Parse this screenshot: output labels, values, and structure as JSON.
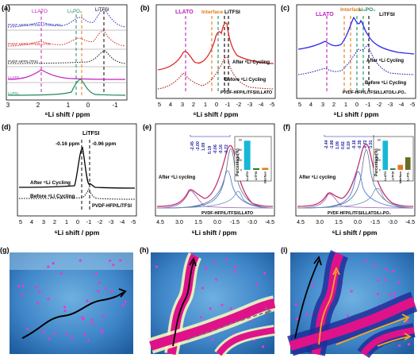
{
  "figure": {
    "panels": [
      {
        "id": "a",
        "letter": "(a)",
        "xlabel": "⁶Li shift / ppm",
        "xticks": [
          "3",
          "2",
          "1",
          "0",
          "-1"
        ],
        "peak_labels": [
          "LLATO",
          "Li₃PO₄",
          "LiTFSI"
        ],
        "traces": [
          {
            "label": "PVDF-HFP/LiTFSI/LLATO/Li₃PO₄",
            "color": "#2a2ab0",
            "style": "dotted"
          },
          {
            "label": "PVDF-HFP/LiTFSI/LLATO",
            "color": "#d42020",
            "style": "dotted"
          },
          {
            "label": "PVDF-HFP/LiTFSI",
            "color": "#111111",
            "style": "dotted"
          },
          {
            "label": "LLATO",
            "color": "#c020c0",
            "style": "solid"
          },
          {
            "label": "Li₃PO₄",
            "color": "#1f8a5a",
            "style": "solid"
          }
        ]
      },
      {
        "id": "b",
        "letter": "(b)",
        "xlabel": "⁶Li shift / ppm",
        "xticks": [
          "5",
          "4",
          "3",
          "2",
          "1",
          "0",
          "-1",
          "-2",
          "-3",
          "-4",
          "-5"
        ],
        "peak_labels": [
          "LLATO",
          "Interface",
          "LiTFSI"
        ],
        "annotations": [
          "After ⁶Li Cycling",
          "Before ⁶Li Cycling",
          "PVDF-HFP/LiTFSI/LLATO"
        ]
      },
      {
        "id": "c",
        "letter": "(c)",
        "xlabel": "⁶Li shift / ppm",
        "xticks": [
          "5",
          "4",
          "3",
          "2",
          "1",
          "0",
          "-1",
          "-2",
          "-3",
          "-4",
          "-5"
        ],
        "peak_labels": [
          "LLATO",
          "Interface",
          "Li₃PO₄",
          "LiTFSI"
        ],
        "annotations": [
          "After ⁶Li Cycling",
          "Before ⁶Li Cycling",
          "PVDF-HFP/LiTFSI/LLATO/Li₃PO₄"
        ]
      },
      {
        "id": "d",
        "letter": "(d)",
        "xlabel": "⁶Li shift / ppm",
        "xticks": [
          "5",
          "4",
          "3",
          "2",
          "1",
          "0",
          "-1",
          "-2",
          "-3",
          "-4",
          "-5"
        ],
        "peak_labels": [
          "LiTFSI",
          "-0.16 ppm",
          "-0.96 ppm"
        ],
        "annotations": [
          "After ⁶Li Cycling",
          "Before ⁶Li Cycling",
          "PVDF-HFP/LiTFSI"
        ]
      },
      {
        "id": "e",
        "letter": "(e)",
        "xlabel": "⁶Li shift / ppm",
        "xticks": [
          "4.5",
          "3.0",
          "1.5",
          "0.0",
          "-1.5",
          "-3.0",
          "-4.5"
        ],
        "fit_peaks": [
          "-2.45",
          "-2.00",
          "1.09",
          "0.19",
          "-0.06",
          "-0.16",
          "-0.72"
        ],
        "annotations": [
          "After ⁶Li cycling",
          "PVDF-HFP/LiTFSI/LLATO"
        ],
        "inset": {
          "ylabel": "Percentage(%)",
          "yticks": [
            "0",
            "30",
            "60",
            "90"
          ],
          "bars": [
            {
              "label": "LLATO",
              "value": 87,
              "color": "#17b8d6"
            },
            {
              "label": "LiTFSI",
              "value": 5,
              "color": "#2e7d32"
            },
            {
              "label": "Interface",
              "value": 6,
              "color": "#e07a1f"
            }
          ]
        }
      },
      {
        "id": "f",
        "letter": "(f)",
        "xlabel": "⁶Li shift / ppm",
        "xticks": [
          "4.5",
          "3.0",
          "1.5",
          "0.0",
          "-1.5",
          "-3.0",
          "-4.5"
        ],
        "fit_peaks": [
          "-2.44",
          "-1.86",
          "1.09",
          "0.82",
          "0.19",
          "-0.16",
          "-0.35",
          "-0.72",
          "-1.51"
        ],
        "annotations": [
          "After ⁶Li cycling",
          "PVDF-HFP/LiTFSI/LLATO/Li₃PO₄"
        ],
        "inset": {
          "ylabel": "Percentage(%)",
          "yticks": [
            "0",
            "20",
            "40",
            "60"
          ],
          "bars": [
            {
              "label": "LLATO",
              "value": 58,
              "color": "#17b8d6"
            },
            {
              "label": "LiTFSI",
              "value": 3,
              "color": "#2e7d32"
            },
            {
              "label": "Interface",
              "value": 10,
              "color": "#e07a1f"
            },
            {
              "label": "Li₃PO₄",
              "value": 25,
              "color": "#6b6b22"
            }
          ]
        }
      },
      {
        "id": "g",
        "letter": "(g)"
      },
      {
        "id": "h",
        "letter": "(h)"
      },
      {
        "id": "i",
        "letter": "(i)"
      }
    ]
  }
}
